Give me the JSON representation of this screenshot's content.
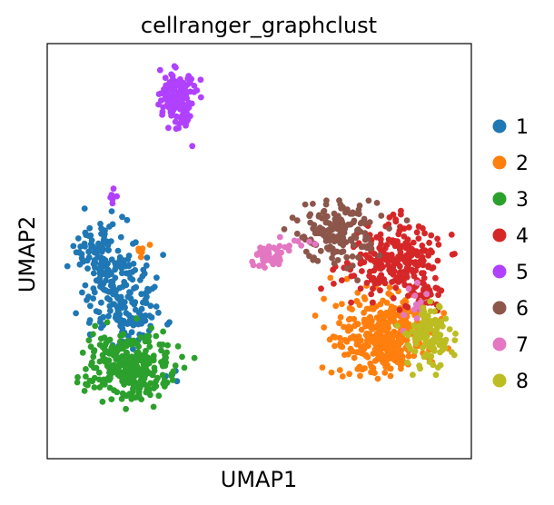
{
  "chart_data": {
    "type": "scatter",
    "title": "cellranger_graphclust",
    "xlabel": "UMAP1",
    "ylabel": "UMAP2",
    "xticks": false,
    "yticks": false,
    "grid": false,
    "legend_position": "right",
    "series": [
      {
        "name": "1",
        "color": "#1f77b4",
        "blobs": [
          {
            "cx": 1.7,
            "cy": 4.1,
            "sx": 0.45,
            "sy": 0.6,
            "n": 150
          },
          {
            "cx": 1.3,
            "cy": 5.0,
            "sx": 0.35,
            "sy": 0.4,
            "n": 70
          },
          {
            "cx": 2.1,
            "cy": 3.4,
            "sx": 0.35,
            "sy": 0.3,
            "n": 60
          },
          {
            "cx": 2.9,
            "cy": 2.0,
            "sx": 0.15,
            "sy": 0.12,
            "n": 8
          }
        ]
      },
      {
        "name": "2",
        "color": "#ff7f0e",
        "blobs": [
          {
            "cx": 8.3,
            "cy": 2.9,
            "sx": 0.55,
            "sy": 0.45,
            "n": 320
          },
          {
            "cx": 8.9,
            "cy": 3.3,
            "sx": 0.35,
            "sy": 0.35,
            "n": 60
          },
          {
            "cx": 2.4,
            "cy": 5.0,
            "sx": 0.12,
            "sy": 0.08,
            "n": 8
          }
        ]
      },
      {
        "name": "3",
        "color": "#2ca02c",
        "blobs": [
          {
            "cx": 2.0,
            "cy": 2.3,
            "sx": 0.55,
            "sy": 0.42,
            "n": 260
          },
          {
            "cx": 2.3,
            "cy": 2.0,
            "sx": 0.35,
            "sy": 0.3,
            "n": 70
          }
        ]
      },
      {
        "name": "4",
        "color": "#d62728",
        "blobs": [
          {
            "cx": 8.6,
            "cy": 4.8,
            "sx": 0.55,
            "sy": 0.45,
            "n": 230
          },
          {
            "cx": 9.3,
            "cy": 3.9,
            "sx": 0.25,
            "sy": 0.3,
            "n": 30
          }
        ]
      },
      {
        "name": "5",
        "color": "#b041ff",
        "blobs": [
          {
            "cx": 3.2,
            "cy": 8.7,
            "sx": 0.2,
            "sy": 0.35,
            "n": 150
          },
          {
            "cx": 1.6,
            "cy": 6.3,
            "sx": 0.06,
            "sy": 0.06,
            "n": 7
          }
        ]
      },
      {
        "name": "6",
        "color": "#8c564b",
        "blobs": [
          {
            "cx": 7.2,
            "cy": 5.5,
            "sx": 0.5,
            "sy": 0.35,
            "n": 170
          }
        ]
      },
      {
        "name": "7",
        "color": "#e377c2",
        "blobs": [
          {
            "cx": 5.5,
            "cy": 4.9,
            "sx": 0.2,
            "sy": 0.15,
            "n": 60
          },
          {
            "cx": 6.1,
            "cy": 5.2,
            "sx": 0.25,
            "sy": 0.1,
            "n": 8
          },
          {
            "cx": 9.1,
            "cy": 3.6,
            "sx": 0.25,
            "sy": 0.25,
            "n": 14
          }
        ]
      },
      {
        "name": "8",
        "color": "#bcbd22",
        "blobs": [
          {
            "cx": 9.45,
            "cy": 3.0,
            "sx": 0.28,
            "sy": 0.4,
            "n": 110
          }
        ]
      }
    ],
    "xlim": [
      0,
      10.5
    ],
    "ylim": [
      0,
      10
    ]
  }
}
